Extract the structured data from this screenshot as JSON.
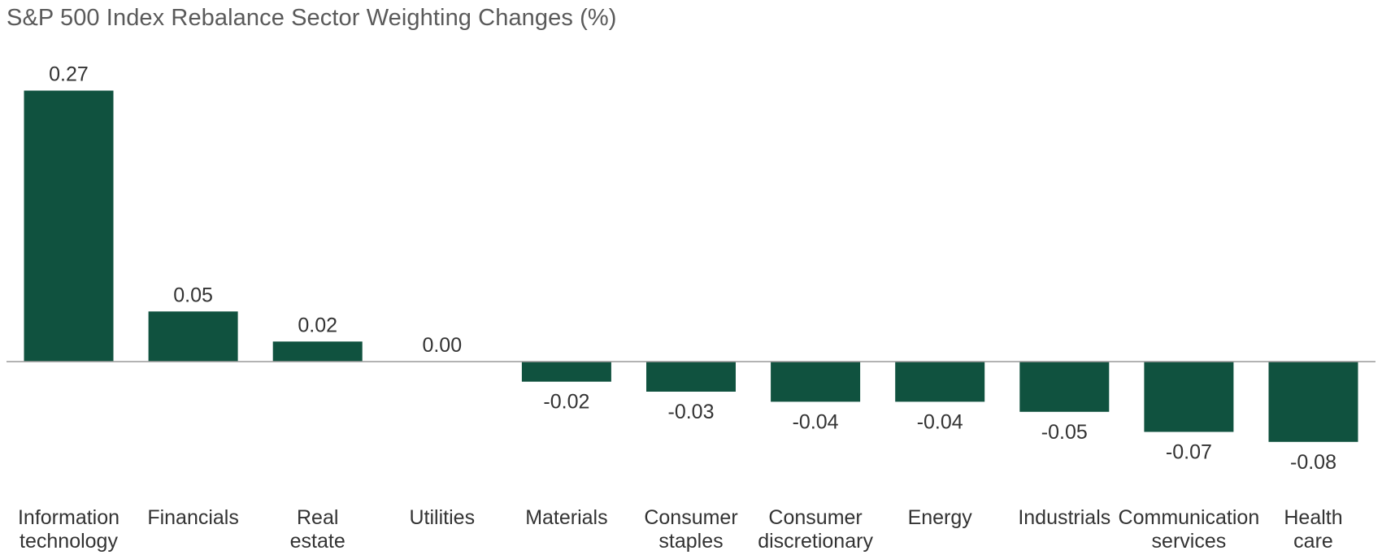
{
  "chart_data": {
    "type": "bar",
    "title": "S&P 500 Index Rebalance Sector Weighting Changes (%)",
    "xlabel": "",
    "ylabel": "",
    "categories": [
      [
        "Information",
        "technology"
      ],
      [
        "Financials"
      ],
      [
        "Real",
        "estate"
      ],
      [
        "Utilities"
      ],
      [
        "Materials"
      ],
      [
        "Consumer",
        "staples"
      ],
      [
        "Consumer",
        "discretionary"
      ],
      [
        "Energy"
      ],
      [
        "Industrials"
      ],
      [
        "Communication",
        "services"
      ],
      [
        "Health",
        "care"
      ]
    ],
    "values": [
      0.27,
      0.05,
      0.02,
      0.0,
      -0.02,
      -0.03,
      -0.04,
      -0.04,
      -0.05,
      -0.07,
      -0.08
    ],
    "value_labels": [
      "0.27",
      "0.05",
      "0.02",
      "0.00",
      "-0.02",
      "-0.03",
      "-0.04",
      "-0.04",
      "-0.05",
      "-0.07",
      "-0.08"
    ],
    "ylim": [
      -0.08,
      0.27
    ],
    "bar_color": "#10523f",
    "grid": false,
    "legend": "none"
  }
}
